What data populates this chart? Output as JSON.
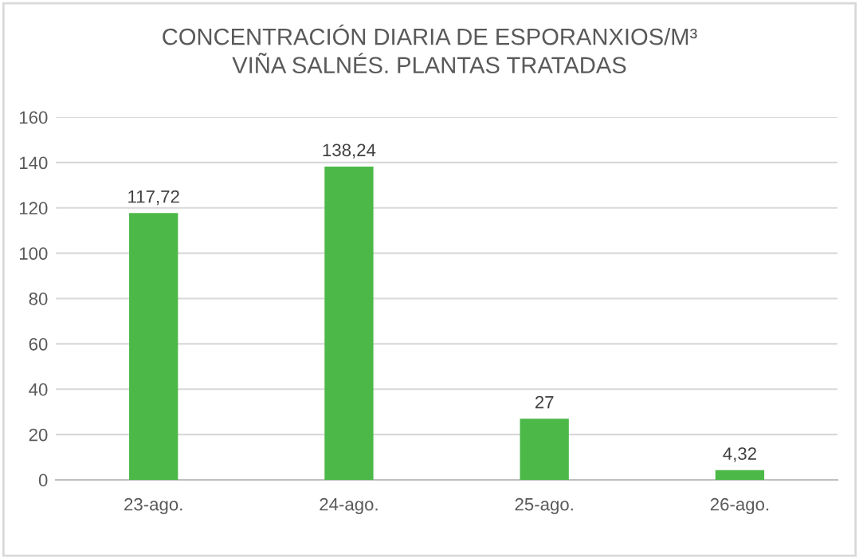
{
  "chart_data": {
    "type": "bar",
    "title": "CONCENTRACIÓN DIARIA DE ESPORANXIOS/M³\nVIÑA SALNÉS. PLANTAS TRATADAS",
    "categories": [
      "23-ago.",
      "24-ago.",
      "25-ago.",
      "26-ago."
    ],
    "values": [
      117.72,
      138.24,
      27,
      4.32
    ],
    "value_labels": [
      "117,72",
      "138,24",
      "27",
      "4,32"
    ],
    "color": "#4cb848",
    "ylim": [
      0,
      160
    ],
    "yticks": [
      0,
      20,
      40,
      60,
      80,
      100,
      120,
      140,
      160
    ],
    "grid": "y"
  }
}
